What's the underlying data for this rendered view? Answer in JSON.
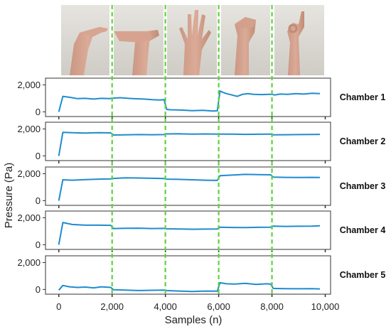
{
  "chart_data": {
    "type": "line",
    "xlabel": "Samples (n)",
    "ylabel": "Pressure (Pa)",
    "xlim": [
      -500,
      10200
    ],
    "ylim": [
      -350,
      2500
    ],
    "x_ticks": [
      0,
      2000,
      4000,
      6000,
      8000,
      10000
    ],
    "x_tick_labels": [
      "0",
      "2,000",
      "4,000",
      "6,000",
      "8,000",
      "10,000"
    ],
    "y_ticks": [
      0,
      2000
    ],
    "y_tick_labels": [
      "0",
      "2,000"
    ],
    "vlines_x": [
      2000,
      4000,
      6000,
      8000
    ],
    "line_color": "#1f8ccf",
    "vline_color": "#5fd33a",
    "gesture_photos": [
      "hand-flexed-up-photo",
      "hand-flexed-down-photo",
      "open-palm-photo",
      "fist-photo",
      "pinch-photo"
    ],
    "series": [
      {
        "name": "Chamber 1",
        "x": [
          0,
          150,
          400,
          700,
          1000,
          1300,
          1600,
          1900,
          2000,
          2100,
          2300,
          2600,
          2900,
          3200,
          3500,
          3800,
          3950,
          4050,
          4200,
          4600,
          5000,
          5400,
          5800,
          5950,
          6050,
          6150,
          6300,
          6500,
          6700,
          6900,
          7100,
          7300,
          7600,
          7900,
          8000,
          8100,
          8300,
          8600,
          8900,
          9200,
          9500,
          9800
        ],
        "values": [
          0,
          1150,
          1080,
          980,
          1000,
          950,
          1000,
          980,
          1000,
          1020,
          1050,
          1000,
          970,
          950,
          900,
          880,
          900,
          180,
          150,
          130,
          90,
          110,
          60,
          80,
          1550,
          1450,
          1350,
          1250,
          1150,
          1300,
          1350,
          1300,
          1280,
          1300,
          1300,
          1250,
          1320,
          1300,
          1350,
          1320,
          1380,
          1350
        ]
      },
      {
        "name": "Chamber 2",
        "x": [
          0,
          150,
          500,
          1000,
          1500,
          1950,
          2050,
          2500,
          3000,
          3500,
          3950,
          4050,
          4500,
          5000,
          5500,
          5950,
          6050,
          6500,
          7000,
          7500,
          7950,
          8050,
          8500,
          9000,
          9500,
          9800
        ],
        "values": [
          0,
          1750,
          1720,
          1700,
          1720,
          1710,
          1550,
          1560,
          1580,
          1570,
          1580,
          1630,
          1640,
          1620,
          1630,
          1620,
          1620,
          1620,
          1600,
          1610,
          1620,
          1560,
          1570,
          1580,
          1590,
          1600
        ]
      },
      {
        "name": "Chamber 3",
        "x": [
          0,
          150,
          500,
          1000,
          1500,
          1950,
          2050,
          2500,
          3000,
          3500,
          3950,
          4050,
          4500,
          5000,
          5500,
          5950,
          6050,
          6500,
          7000,
          7500,
          7950,
          8050,
          8500,
          9000,
          9500,
          9800
        ],
        "values": [
          0,
          1550,
          1520,
          1560,
          1600,
          1620,
          1650,
          1700,
          1680,
          1660,
          1640,
          1600,
          1580,
          1550,
          1520,
          1500,
          1850,
          1900,
          1950,
          1930,
          1920,
          1750,
          1730,
          1720,
          1730,
          1720
        ]
      },
      {
        "name": "Chamber 4",
        "x": [
          0,
          150,
          500,
          1000,
          1500,
          1950,
          2050,
          2500,
          3000,
          3500,
          3950,
          4050,
          4500,
          5000,
          5500,
          5950,
          6050,
          6500,
          7000,
          7500,
          7950,
          8050,
          8500,
          9000,
          9500,
          9800
        ],
        "values": [
          0,
          1650,
          1500,
          1450,
          1450,
          1440,
          1200,
          1220,
          1230,
          1200,
          1210,
          1180,
          1170,
          1150,
          1160,
          1170,
          1300,
          1280,
          1270,
          1290,
          1300,
          1380,
          1360,
          1370,
          1380,
          1400
        ]
      },
      {
        "name": "Chamber 5",
        "x": [
          0,
          150,
          400,
          700,
          1000,
          1300,
          1600,
          1950,
          2050,
          2500,
          3000,
          3500,
          3950,
          4050,
          4500,
          5000,
          5500,
          5950,
          6050,
          6300,
          6600,
          7000,
          7400,
          7800,
          7950,
          8050,
          8500,
          9000,
          9500,
          9800
        ],
        "values": [
          -50,
          300,
          200,
          150,
          180,
          120,
          200,
          150,
          -20,
          -50,
          -80,
          -60,
          -50,
          -80,
          -120,
          -150,
          -120,
          -130,
          500,
          420,
          400,
          450,
          380,
          420,
          400,
          80,
          60,
          50,
          60,
          40
        ]
      }
    ]
  }
}
